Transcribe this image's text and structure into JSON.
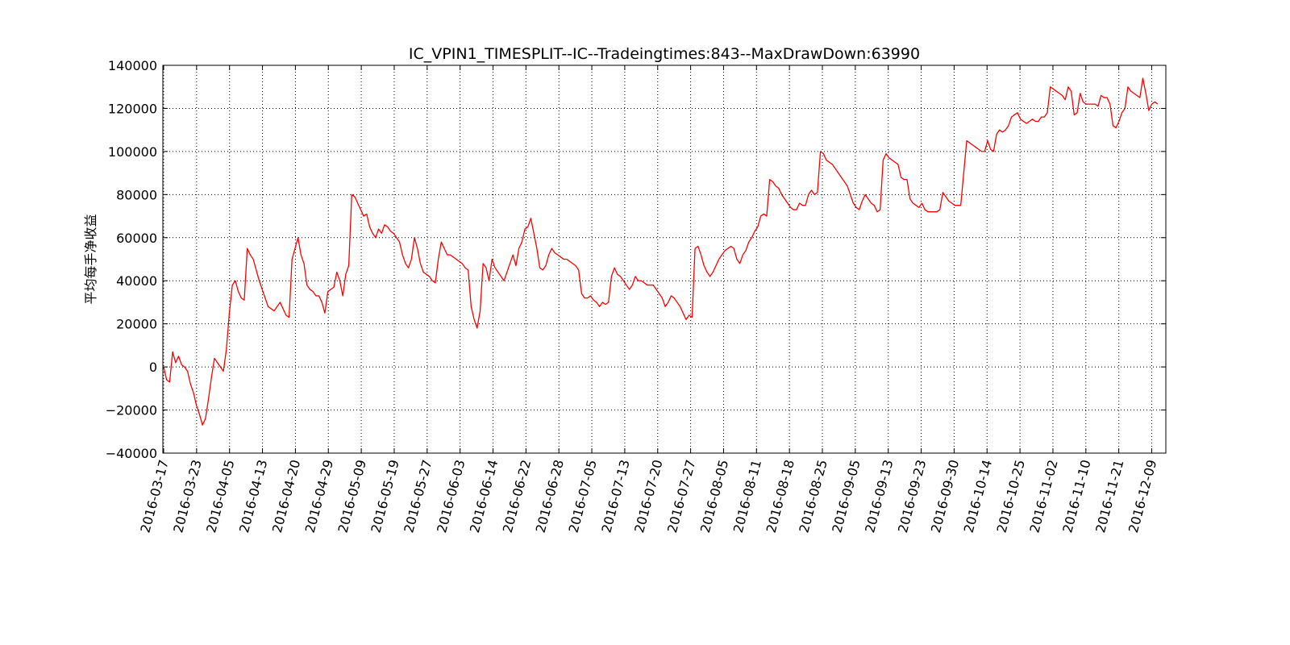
{
  "chart_data": {
    "type": "line",
    "title": "IC_VPIN1_TIMESPLIT--IC--Tradeingtimes:843--MaxDrawDown:63990",
    "xlabel": "",
    "ylabel": "平均每手净收益",
    "ylim": [
      -40000,
      140000
    ],
    "yticks": [
      -40000,
      -20000,
      0,
      20000,
      40000,
      60000,
      80000,
      100000,
      120000,
      140000
    ],
    "yticklabels": [
      "−40000",
      "−20000",
      "0",
      "20000",
      "40000",
      "60000",
      "80000",
      "100000",
      "120000",
      "140000"
    ],
    "xticklabels": [
      "2016-03-17",
      "2016-03-23",
      "2016-04-05",
      "2016-04-13",
      "2016-04-20",
      "2016-04-29",
      "2016-05-09",
      "2016-05-19",
      "2016-05-27",
      "2016-06-03",
      "2016-06-14",
      "2016-06-22",
      "2016-06-28",
      "2016-07-05",
      "2016-07-13",
      "2016-07-20",
      "2016-07-27",
      "2016-08-05",
      "2016-08-11",
      "2016-08-18",
      "2016-08-25",
      "2016-09-05",
      "2016-09-13",
      "2016-09-23",
      "2016-09-30",
      "2016-10-14",
      "2016-10-25",
      "2016-11-02",
      "2016-11-10",
      "2016-11-21",
      "2016-12-09"
    ],
    "grid": true,
    "line_color": "#ff0000",
    "series": [
      {
        "values": [
          0,
          -6000,
          -7000,
          7000,
          2000,
          5000,
          1000,
          0,
          -2000,
          -8000,
          -12000,
          -18000,
          -22000,
          -27000,
          -24000,
          -15000,
          -5000,
          4000,
          2000,
          0,
          -2000,
          8000,
          25000,
          38000,
          40000,
          35000,
          32000,
          31000,
          55000,
          52000,
          50000,
          45000,
          40000,
          36000,
          32000,
          28000,
          27000,
          26000,
          28000,
          30000,
          27000,
          24000,
          23000,
          50000,
          55000,
          60000,
          52000,
          48000,
          38000,
          36000,
          35000,
          33000,
          33000,
          30000,
          25000,
          35000,
          36000,
          37000,
          44000,
          40000,
          33000,
          43000,
          47000,
          80000,
          79000,
          76000,
          73000,
          70000,
          71000,
          65000,
          62000,
          60000,
          64000,
          62000,
          66000,
          65000,
          63000,
          62000,
          60000,
          58000,
          52000,
          48000,
          46000,
          50000,
          60000,
          55000,
          48000,
          44000,
          43000,
          42000,
          40000,
          39000,
          50000,
          58000,
          55000,
          52000,
          52000,
          51000,
          50000,
          49000,
          48000,
          46000,
          45000,
          28000,
          22000,
          18000,
          26000,
          48000,
          46000,
          40000,
          50000,
          46000,
          44000,
          42000,
          40000,
          44000,
          48000,
          52000,
          47000,
          55000,
          58000,
          64000,
          65000,
          69000,
          62000,
          55000,
          46000,
          45000,
          47000,
          52000,
          55000,
          53000,
          52000,
          51000,
          50000,
          50000,
          49000,
          48000,
          47000,
          45000,
          34000,
          32000,
          32000,
          33000,
          31000,
          30000,
          28000,
          30000,
          29000,
          30000,
          42000,
          46000,
          43000,
          42000,
          40000,
          38000,
          36000,
          38000,
          42000,
          40000,
          40000,
          39000,
          38000,
          38000,
          38000,
          36000,
          34000,
          32000,
          28000,
          30000,
          33000,
          32000,
          30000,
          28000,
          25000,
          22000,
          24000,
          23000,
          55000,
          56000,
          52000,
          47000,
          44000,
          42000,
          44000,
          47000,
          50000,
          52000,
          54000,
          55000,
          56000,
          55000,
          50000,
          48000,
          52000,
          54000,
          58000,
          60000,
          63000,
          65000,
          70000,
          71000,
          70000,
          87000,
          86000,
          84000,
          83000,
          80000,
          78000,
          76000,
          74000,
          73000,
          73000,
          76000,
          75000,
          75000,
          80000,
          82000,
          80000,
          81000,
          100000,
          99000,
          96000,
          95000,
          94000,
          92000,
          90000,
          88000,
          86000,
          84000,
          80000,
          76000,
          74000,
          73000,
          77000,
          80000,
          78000,
          76000,
          75000,
          72000,
          73000,
          96000,
          99000,
          97000,
          96000,
          95000,
          94000,
          88000,
          87000,
          87000,
          78000,
          76000,
          75000,
          74000,
          76000,
          73000,
          72000,
          72000,
          72000,
          72000,
          73000,
          81000,
          79000,
          77000,
          76000,
          75000,
          75000,
          75000,
          90000,
          105000,
          104000,
          103000,
          102000,
          101000,
          100000,
          100000,
          105000,
          101000,
          100000,
          108000,
          110000,
          109000,
          110000,
          112000,
          116000,
          117000,
          118000,
          115000,
          114000,
          113000,
          114000,
          115000,
          114000,
          114000,
          116000,
          116000,
          118000,
          130000,
          129000,
          128000,
          127000,
          126000,
          124000,
          130000,
          128000,
          117000,
          118000,
          127000,
          123000,
          122000,
          122000,
          122000,
          122000,
          121000,
          126000,
          125000,
          125000,
          122000,
          112000,
          111000,
          114000,
          118000,
          120000,
          130000,
          128000,
          127000,
          126000,
          125000,
          134000,
          127000,
          119000,
          122000,
          123000,
          122000
        ]
      }
    ]
  }
}
